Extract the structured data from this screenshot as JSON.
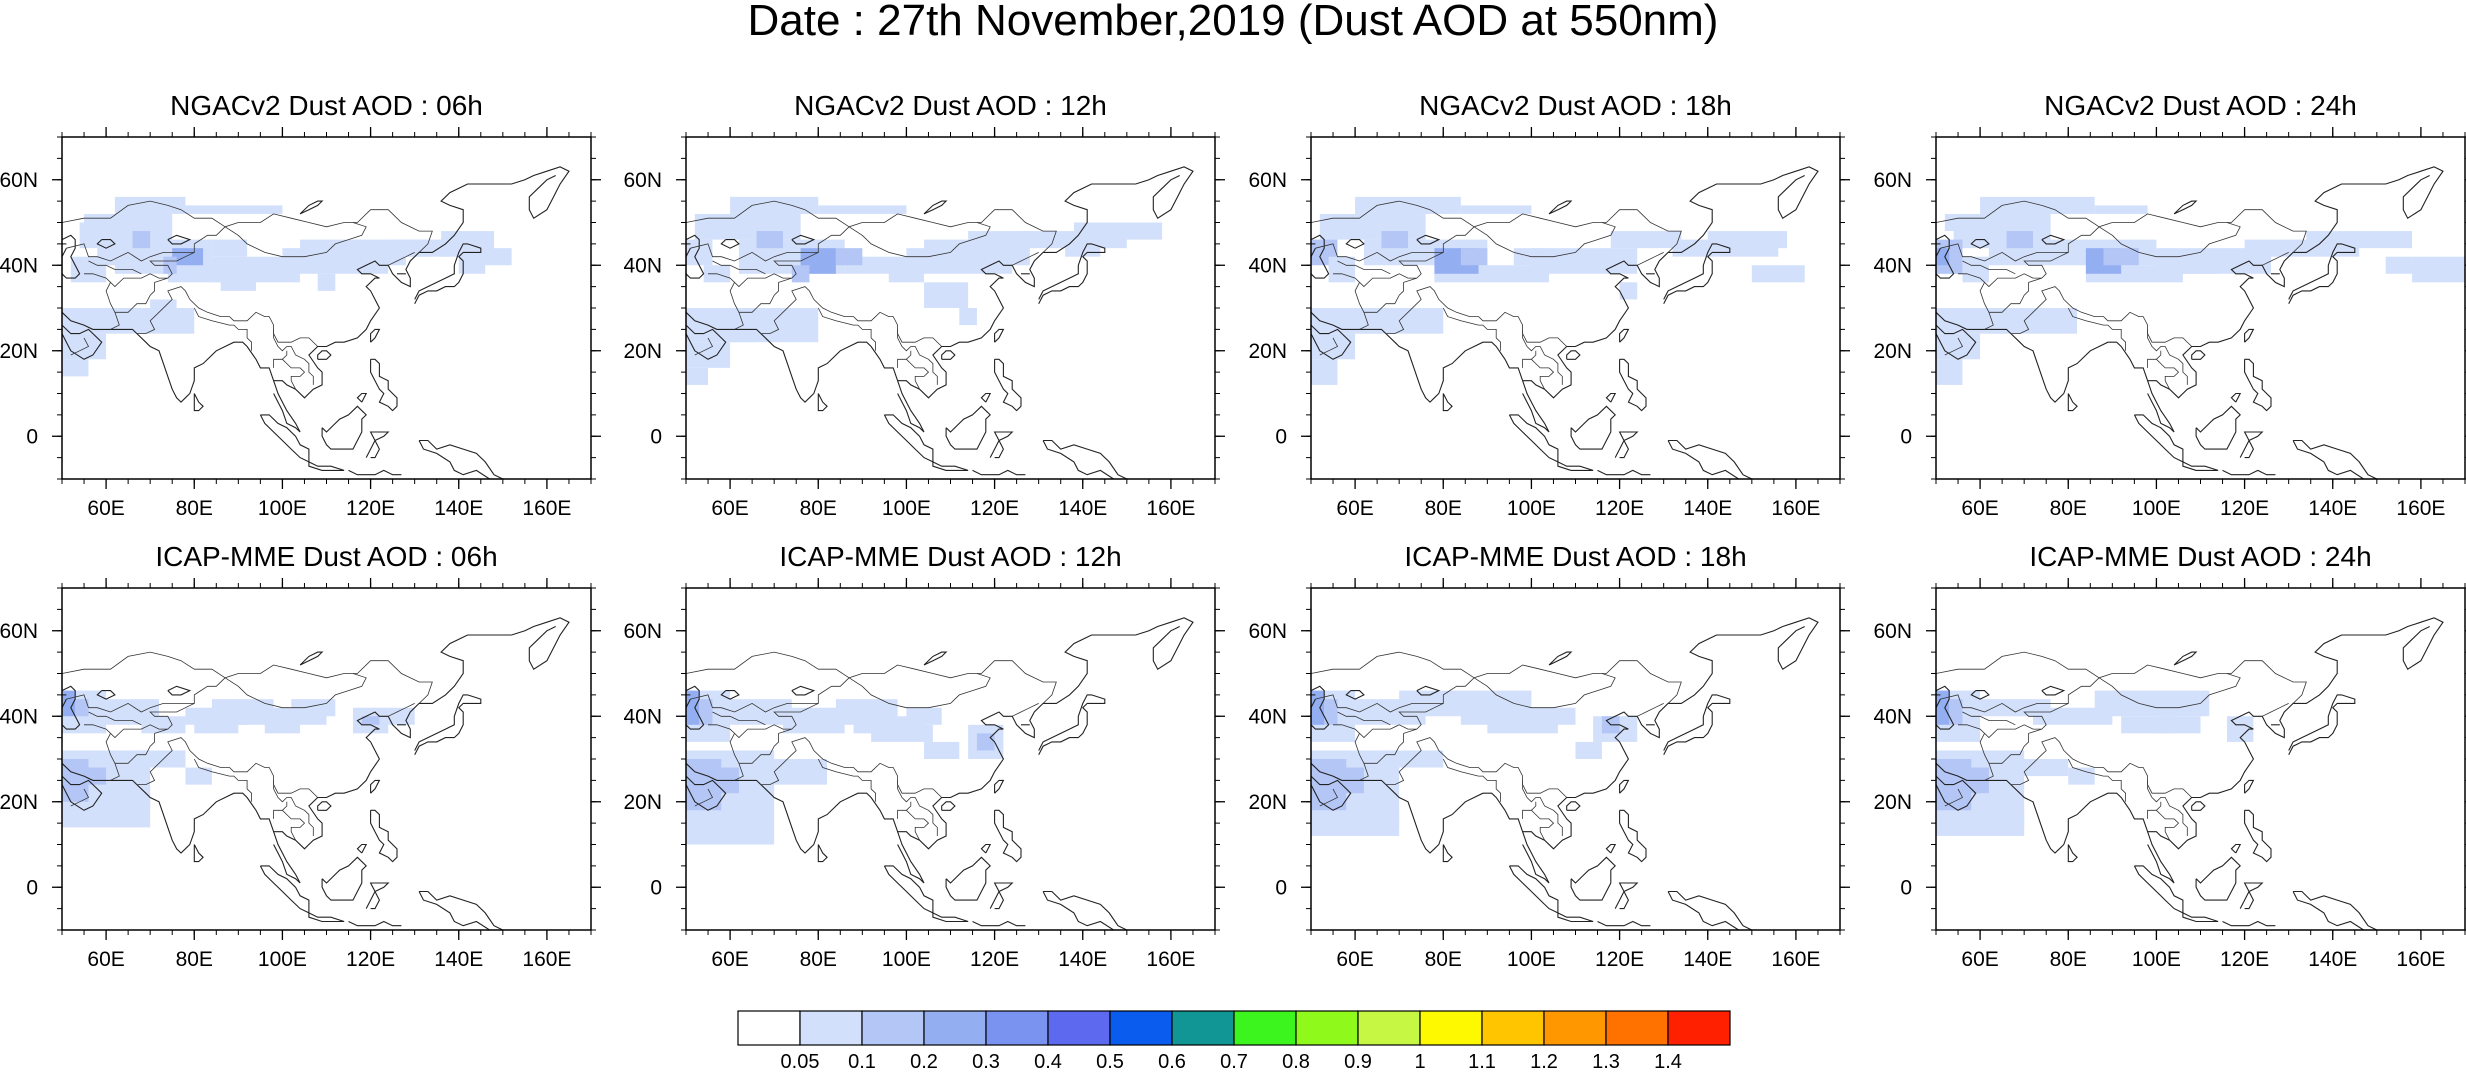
{
  "title": "Date : 27th November,2019 (Dust AOD at 550nm)",
  "panels": [
    {
      "title": "NGACv2 Dust AOD : 06h",
      "model": "NGACv2",
      "hour": "06h"
    },
    {
      "title": "NGACv2 Dust AOD : 12h",
      "model": "NGACv2",
      "hour": "12h"
    },
    {
      "title": "NGACv2 Dust AOD : 18h",
      "model": "NGACv2",
      "hour": "18h"
    },
    {
      "title": "NGACv2 Dust AOD : 24h",
      "model": "NGACv2",
      "hour": "24h"
    },
    {
      "title": "ICAP-MME Dust AOD : 06h",
      "model": "ICAP-MME",
      "hour": "06h"
    },
    {
      "title": "ICAP-MME Dust AOD : 12h",
      "model": "ICAP-MME",
      "hour": "12h"
    },
    {
      "title": "ICAP-MME Dust AOD : 18h",
      "model": "ICAP-MME",
      "hour": "18h"
    },
    {
      "title": "ICAP-MME Dust AOD : 24h",
      "model": "ICAP-MME",
      "hour": "24h"
    }
  ],
  "axes": {
    "lon_ticks": [
      "60E",
      "80E",
      "100E",
      "120E",
      "140E",
      "160E"
    ],
    "lat_ticks": [
      "60N",
      "40N",
      "20N",
      "0"
    ],
    "lon_values": [
      60,
      80,
      100,
      120,
      140,
      160
    ],
    "lat_values": [
      60,
      40,
      20,
      0
    ],
    "lon_range": [
      50,
      170
    ],
    "lat_range": [
      -10,
      70
    ]
  },
  "colorbar": {
    "labels": [
      "0.05",
      "0.1",
      "0.2",
      "0.3",
      "0.4",
      "0.5",
      "0.6",
      "0.7",
      "0.8",
      "0.9",
      "1",
      "1.1",
      "1.2",
      "1.3",
      "1.4"
    ],
    "colors": [
      "#ffffff",
      "#d3e0fb",
      "#b3c6f6",
      "#94aef2",
      "#7b93f0",
      "#5d69ef",
      "#0a5cee",
      "#119695",
      "#3df51e",
      "#90f91c",
      "#c5f743",
      "#fff900",
      "#ffc600",
      "#ff9800",
      "#ff7200",
      "#ff2000"
    ]
  }
}
